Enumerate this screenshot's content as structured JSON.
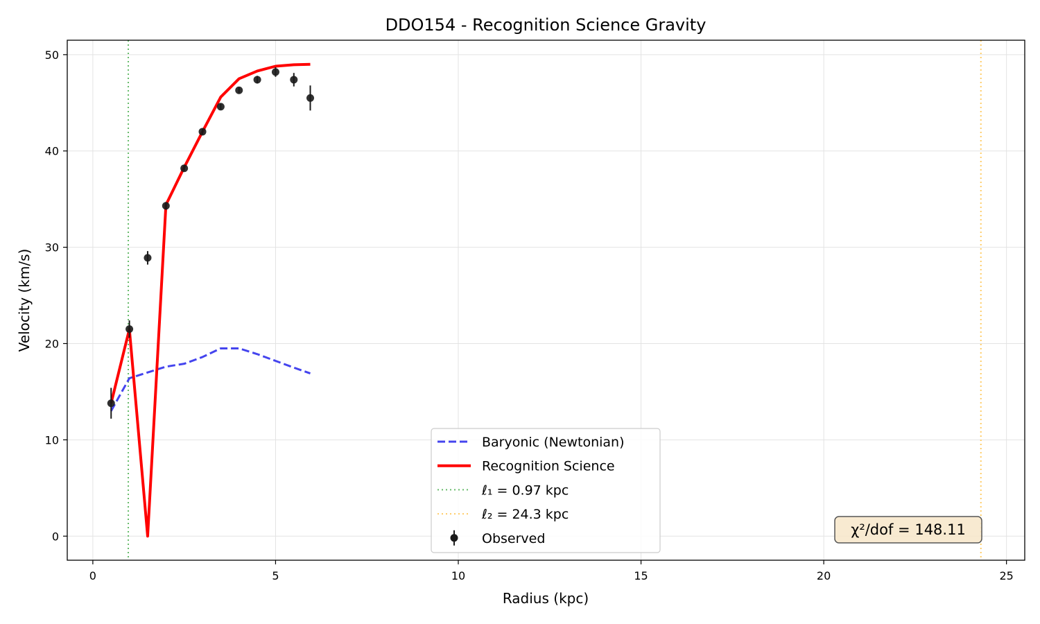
{
  "chart_data": {
    "type": "line",
    "title": "DDO154 - Recognition Science Gravity",
    "xlabel": "Radius (kpc)",
    "ylabel": "Velocity (km/s)",
    "xlim": [
      -0.7,
      25.5
    ],
    "ylim": [
      -2.5,
      51.5
    ],
    "xticks": [
      0,
      5,
      10,
      15,
      20,
      25
    ],
    "yticks": [
      0,
      10,
      20,
      30,
      40,
      50
    ],
    "grid": true,
    "legend_position": "bottom-center",
    "series": [
      {
        "name": "Baryonic (Newtonian)",
        "style": "dashed",
        "color": "#4444ee",
        "x": [
          0.5,
          1.0,
          1.5,
          2.0,
          2.5,
          3.0,
          3.5,
          4.0,
          4.5,
          5.0,
          5.5,
          5.95
        ],
        "y": [
          13.0,
          16.4,
          17.0,
          17.6,
          17.9,
          18.6,
          19.5,
          19.5,
          18.9,
          18.2,
          17.5,
          16.9
        ]
      },
      {
        "name": "Recognition Science",
        "style": "solid",
        "color": "#ff0000",
        "x": [
          0.5,
          1.0,
          1.5,
          2.0,
          2.5,
          3.0,
          3.5,
          4.0,
          4.5,
          5.0,
          5.5,
          5.95
        ],
        "y": [
          13.8,
          21.5,
          0.0,
          34.4,
          38.3,
          42.0,
          45.6,
          47.5,
          48.3,
          48.8,
          48.95,
          49.0
        ]
      },
      {
        "name": "Observed",
        "style": "errorbar",
        "color": "#1a1a1a",
        "x": [
          0.5,
          1.0,
          1.5,
          2.0,
          2.5,
          3.0,
          3.5,
          4.0,
          4.5,
          5.0,
          5.5,
          5.95
        ],
        "y": [
          13.8,
          21.5,
          28.9,
          34.3,
          38.2,
          42.0,
          44.6,
          46.3,
          47.4,
          48.2,
          47.4,
          45.5
        ],
        "yerr": [
          1.6,
          0.9,
          0.7,
          0.4,
          0.3,
          0.3,
          0.3,
          0.3,
          0.4,
          0.5,
          0.7,
          1.3
        ]
      }
    ],
    "vlines": [
      {
        "name": "ℓ₁ = 0.97 kpc",
        "x": 0.97,
        "color": "#66bb6a",
        "style": "dotted"
      },
      {
        "name": "ℓ₂ = 24.3 kpc",
        "x": 24.3,
        "color": "#ffcc66",
        "style": "dotted"
      }
    ],
    "annotation": {
      "text": "χ²/dof = 148.11",
      "background": "#f7e6c9",
      "position": "bottom-right"
    }
  }
}
